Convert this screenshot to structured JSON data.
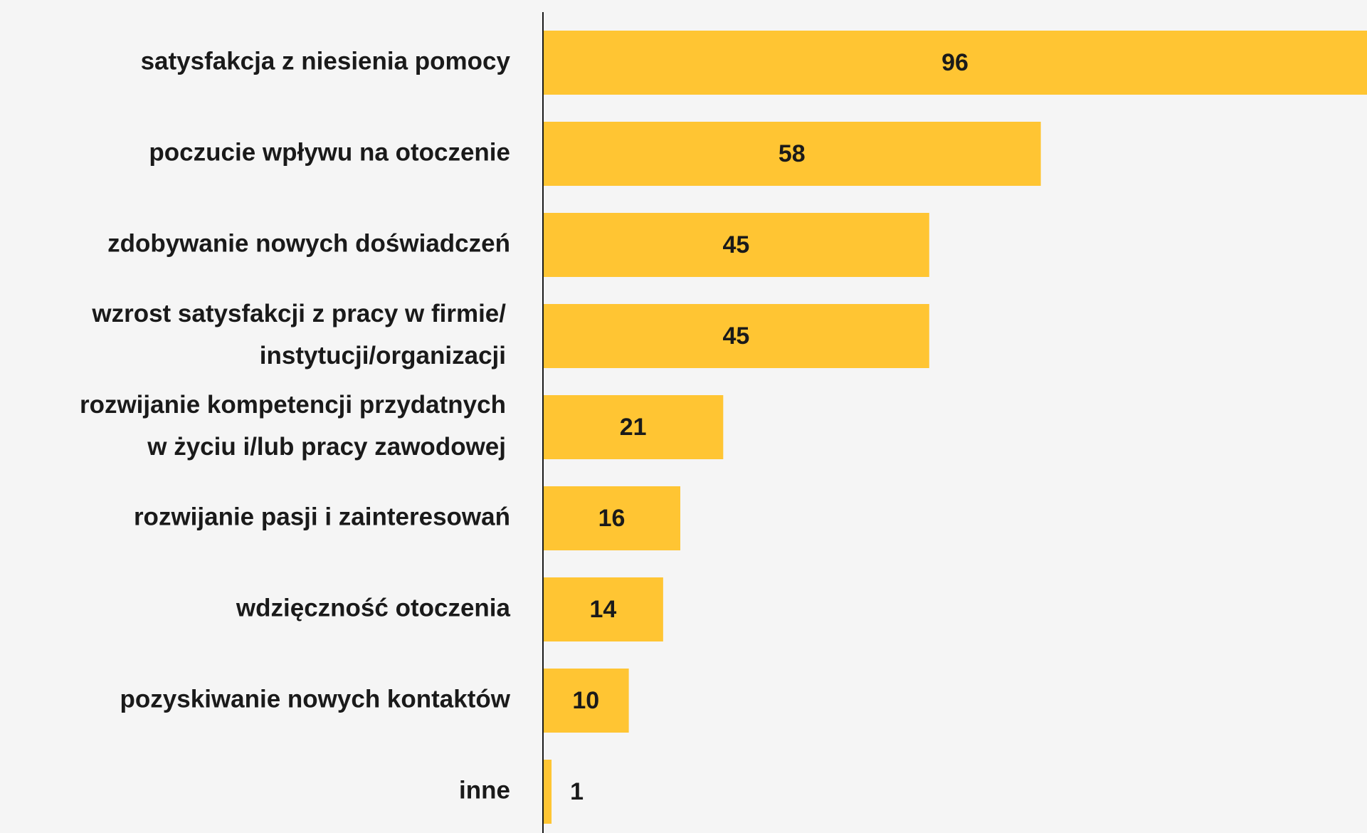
{
  "chart_data": {
    "type": "bar",
    "orientation": "horizontal",
    "color": "#ffc533",
    "categories": [
      "satysfakcja z niesienia pomocy",
      "poczucie wpływu na otoczenie",
      "zdobywanie nowych doświadczeń",
      [
        "wzrost satysfakcji z pracy w firmie/",
        "instytucji/organizacji"
      ],
      [
        "rozwijanie kompetencji przydatnych",
        "w życiu i/lub pracy zawodowej"
      ],
      "rozwijanie pasji i zainteresowań",
      "wdzięczność otoczenia",
      "pozyskiwanie nowych kontaktów",
      "inne"
    ],
    "values": [
      96,
      58,
      45,
      45,
      21,
      16,
      14,
      10,
      1
    ]
  }
}
